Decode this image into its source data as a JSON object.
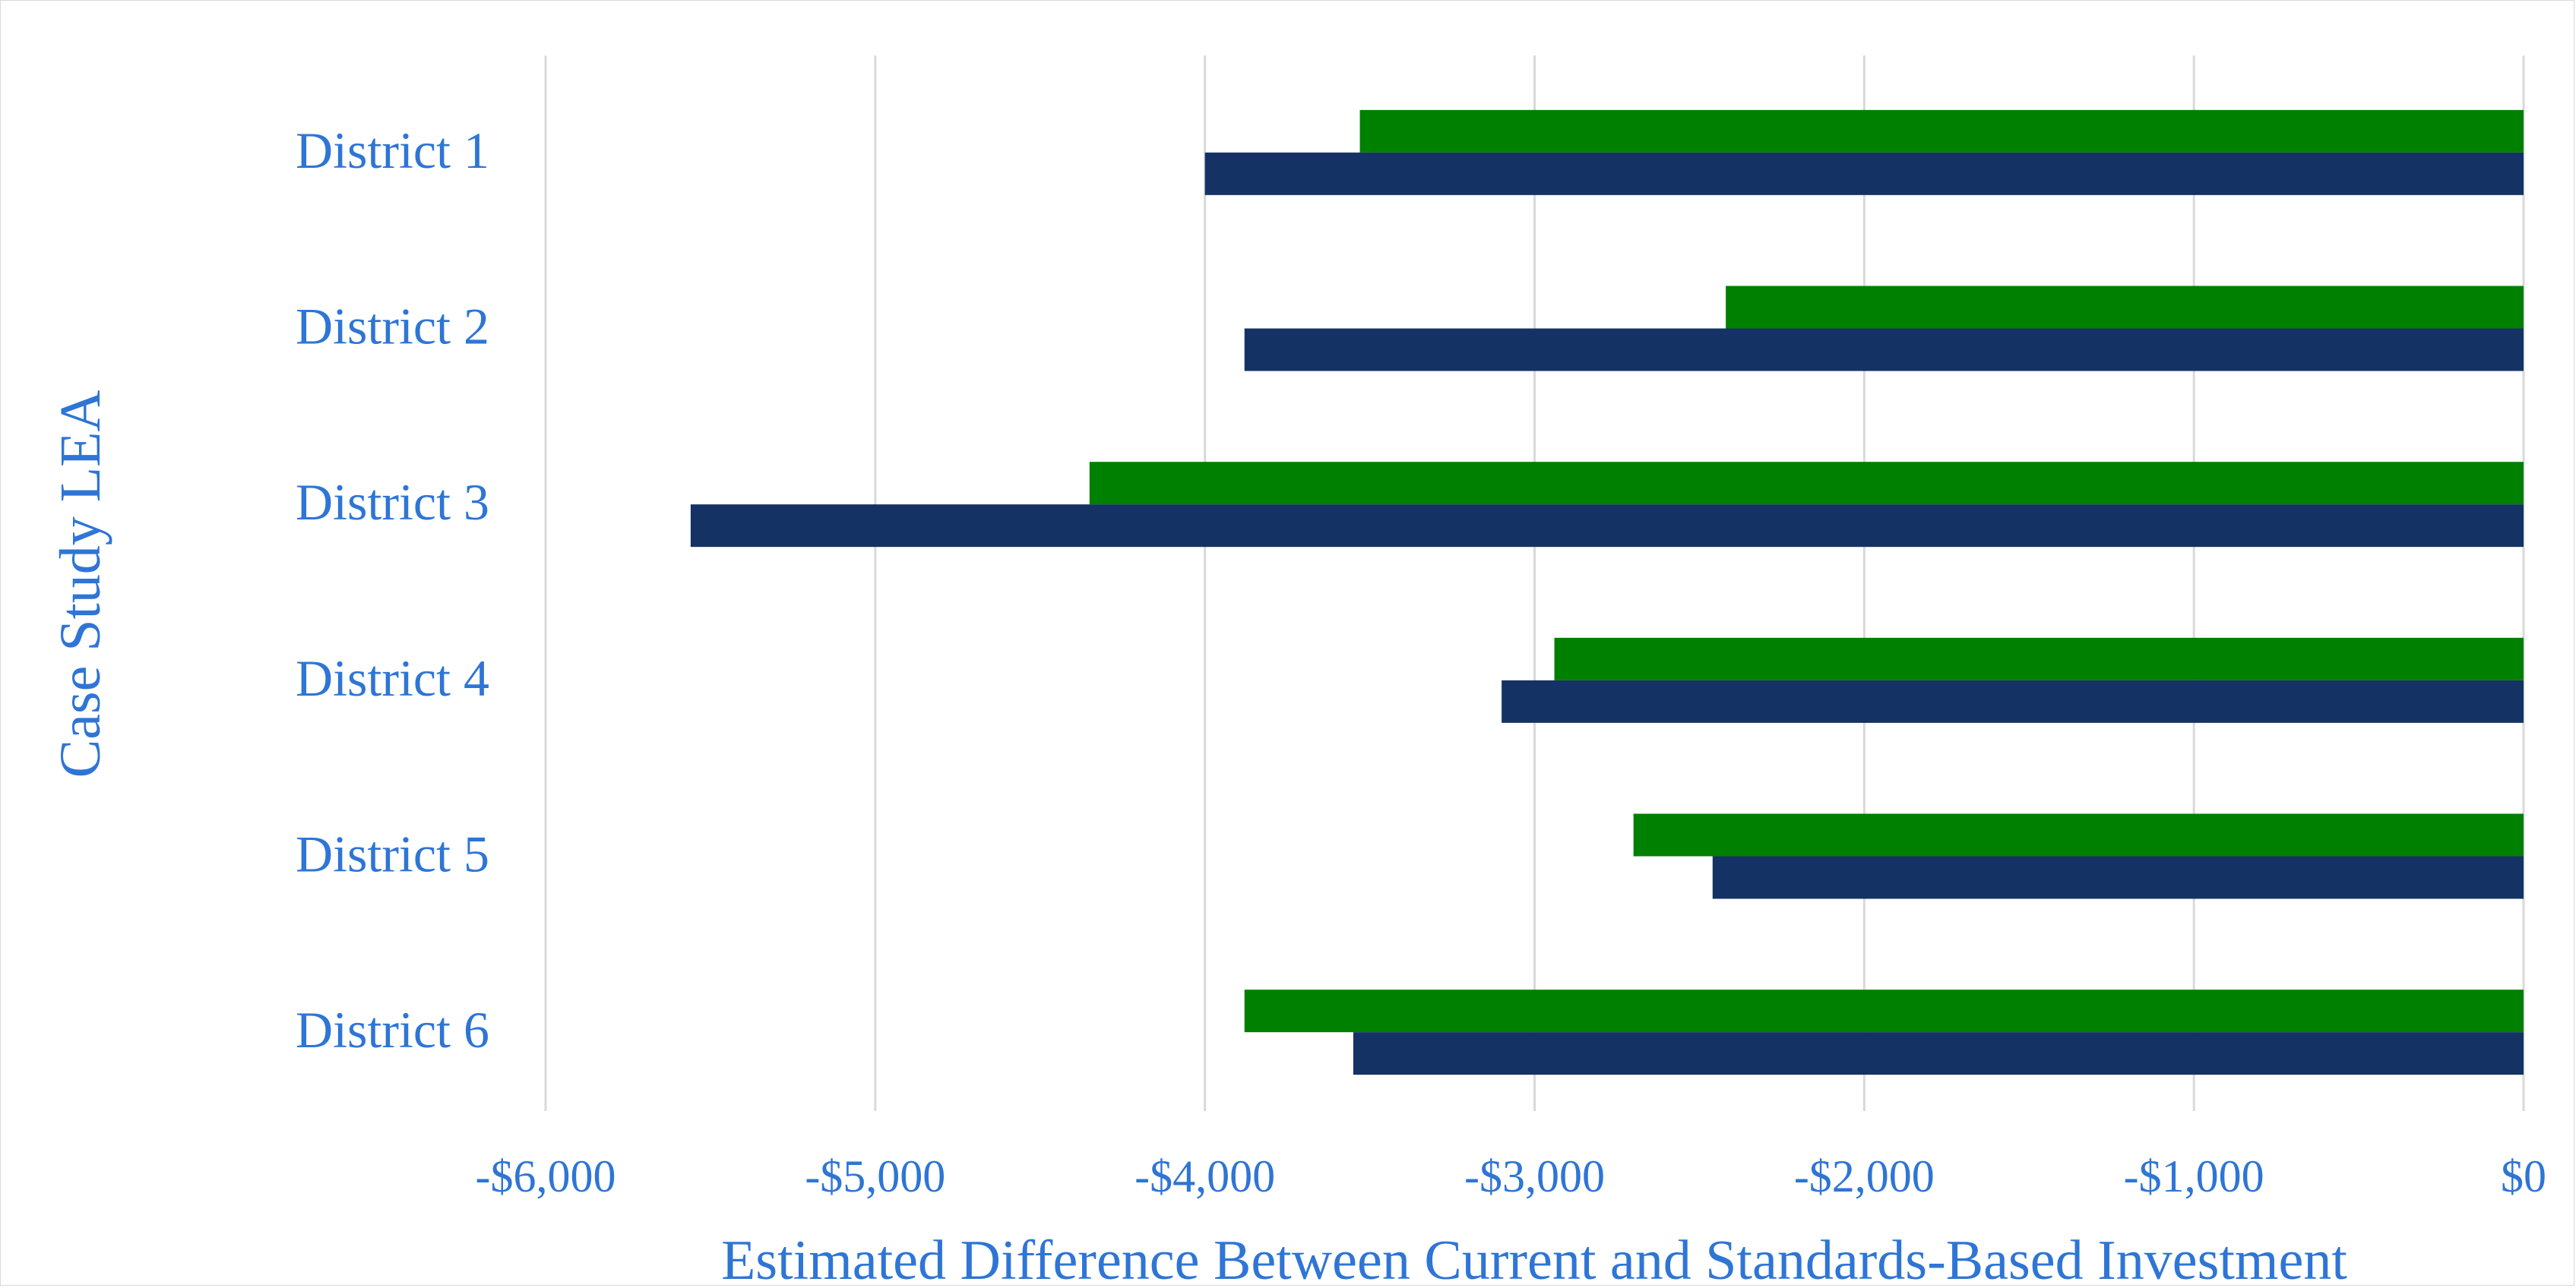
{
  "chart_data": {
    "type": "bar",
    "orientation": "horizontal",
    "xlabel": "Estimated Difference Between Current and Standards-Based Investment",
    "ylabel": "Case Study LEA",
    "categories": [
      "District 1",
      "District 2",
      "District 3",
      "District 4",
      "District 5",
      "District 6"
    ],
    "xlim": [
      -6000,
      0
    ],
    "xticks": [
      -6000,
      -5000,
      -4000,
      -3000,
      -2000,
      -1000,
      0
    ],
    "xtick_labels": [
      "-$6,000",
      "-$5,000",
      "-$4,000",
      "-$3,000",
      "-$2,000",
      "-$1,000",
      "$0"
    ],
    "grid": "vertical",
    "legend": "none",
    "series": [
      {
        "color": "#008000",
        "values": [
          -3530,
          -2420,
          -4350,
          -2940,
          -2700,
          -3880
        ]
      },
      {
        "color": "#143264",
        "values": [
          -4000,
          -3880,
          -5560,
          -3100,
          -2460,
          -3550
        ]
      }
    ],
    "colors": {
      "label_text": "#2e75d6",
      "grid": "#d9d9d9"
    }
  }
}
